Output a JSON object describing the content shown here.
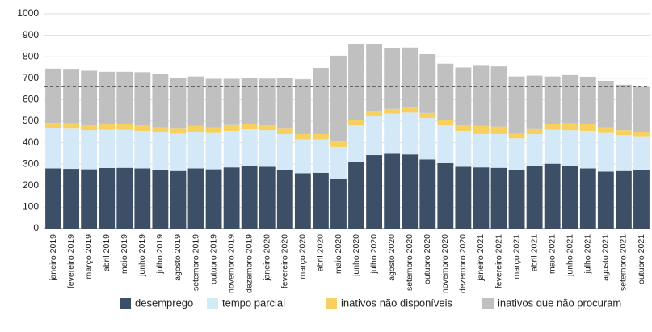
{
  "chart_data": {
    "type": "stacked_bar",
    "categories": [
      "janeiro 2019",
      "fevereiro 2019",
      "março 2019",
      "abril 2019",
      "maio 2019",
      "junho 2019",
      "julho 2019",
      "agosto 2019",
      "setembro 2019",
      "outubro 2019",
      "novembro 2019",
      "dezembro 2019",
      "janeiro 2020",
      "fevereiro 2020",
      "março 2020",
      "abril 2020",
      "maio 2020",
      "junho 2020",
      "julho 2020",
      "agosto 2020",
      "setembro 2020",
      "outubro 2020",
      "novembro 2020",
      "dezembro 2020",
      "janeiro 2021",
      "fevereiro 2021",
      "março 2021",
      "abril 2021",
      "maio 2021",
      "junho 2021",
      "julho 2021",
      "agosto 2021",
      "setembro 2021",
      "outubro 2021"
    ],
    "series": [
      {
        "name": "desemprego",
        "color": "#3d4f66",
        "values": [
          280,
          278,
          276,
          282,
          283,
          280,
          272,
          268,
          280,
          276,
          285,
          290,
          288,
          272,
          258,
          260,
          232,
          312,
          342,
          348,
          345,
          322,
          305,
          288,
          285,
          283,
          272,
          293,
          302,
          292,
          280,
          265,
          268,
          272
        ]
      },
      {
        "name": "tempo parcial",
        "color": "#d4e9f7",
        "values": [
          188,
          187,
          182,
          178,
          177,
          175,
          178,
          174,
          170,
          169,
          170,
          172,
          170,
          168,
          157,
          155,
          148,
          168,
          183,
          187,
          195,
          193,
          175,
          167,
          155,
          157,
          148,
          147,
          158,
          166,
          175,
          180,
          167,
          158
        ]
      },
      {
        "name": "inativos não disponíveis",
        "color": "#f7d060",
        "values": [
          24,
          25,
          22,
          25,
          25,
          25,
          22,
          23,
          28,
          27,
          27,
          26,
          22,
          25,
          25,
          25,
          25,
          25,
          23,
          22,
          23,
          23,
          25,
          25,
          38,
          35,
          22,
          23,
          25,
          32,
          33,
          27,
          23,
          20
        ]
      },
      {
        "name": "inativos que não procuram",
        "color": "#c0c0c0",
        "values": [
          253,
          250,
          255,
          245,
          245,
          248,
          250,
          238,
          230,
          225,
          215,
          212,
          218,
          235,
          255,
          308,
          400,
          353,
          310,
          283,
          280,
          274,
          263,
          270,
          280,
          280,
          266,
          249,
          223,
          225,
          219,
          216,
          212,
          210
        ]
      }
    ],
    "ylim": [
      0,
      1000
    ],
    "yticks": [
      0,
      100,
      200,
      300,
      400,
      500,
      600,
      700,
      800,
      900,
      1000
    ],
    "grid": true,
    "reference_line": 660,
    "legend": "bottom"
  }
}
